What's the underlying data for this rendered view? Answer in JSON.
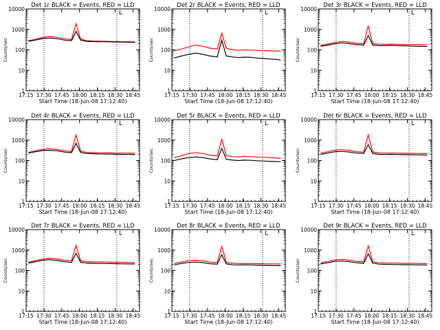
{
  "chart_data": [
    {
      "type": "line",
      "scale": "log",
      "title": "Det 1r BLACK = Events, RED = LLD",
      "xlabel": "Start Time (18-Jun-08 17:12:40)",
      "ylabel": "Counts/sec",
      "xtick_labels": [
        "17:15",
        "17:30",
        "17:45",
        "18:00",
        "18:15",
        "18:30",
        "18:45"
      ],
      "ytick_labels": [
        "1",
        "10",
        "100",
        "1000",
        "10000"
      ],
      "ylim": [
        1,
        10000
      ],
      "flag_label": "L",
      "series": [
        {
          "color": "#000000",
          "values": [
            260,
            300,
            360,
            380,
            350,
            300,
            280,
            800,
            300,
            260,
            255,
            250,
            250,
            245,
            240,
            240,
            235,
            230
          ]
        },
        {
          "color": "#ff0000",
          "values": [
            280,
            330,
            410,
            450,
            410,
            350,
            320,
            1900,
            340,
            280,
            270,
            265,
            262,
            258,
            254,
            250,
            248,
            245
          ]
        }
      ]
    },
    {
      "type": "line",
      "scale": "log",
      "title": "Det 2r BLACK = Events, RED = LLD",
      "xlabel": "Start Time (18-Jun-08 17:12:40)",
      "ylabel": "Counts/sec",
      "xtick_labels": [
        "17:15",
        "17:30",
        "17:45",
        "18:00",
        "18:15",
        "18:30",
        "18:45"
      ],
      "ytick_labels": [
        "1",
        "10",
        "100",
        "1000",
        "10000"
      ],
      "ylim": [
        1,
        10000
      ],
      "flag_label": "L",
      "series": [
        {
          "color": "#000000",
          "values": [
            40,
            50,
            60,
            70,
            60,
            50,
            45,
            300,
            50,
            45,
            42,
            44,
            43,
            40,
            38,
            36,
            34,
            32
          ]
        },
        {
          "color": "#ff0000",
          "values": [
            90,
            110,
            140,
            170,
            150,
            120,
            110,
            650,
            120,
            100,
            95,
            100,
            98,
            95,
            92,
            90,
            88,
            86
          ]
        }
      ]
    },
    {
      "type": "line",
      "scale": "log",
      "title": "Det 3r BLACK = Events, RED = LLD",
      "xlabel": "Start Time (18-Jun-08 17:12:40)",
      "ylabel": "Counts/sec",
      "xtick_labels": [
        "17:15",
        "17:30",
        "17:45",
        "18:00",
        "18:15",
        "18:30",
        "18:45"
      ],
      "ytick_labels": [
        "1",
        "10",
        "100",
        "1000",
        "10000"
      ],
      "ylim": [
        1,
        10000
      ],
      "flag_label": "L",
      "series": [
        {
          "color": "#000000",
          "values": [
            150,
            170,
            200,
            220,
            200,
            180,
            170,
            500,
            170,
            160,
            160,
            165,
            162,
            158,
            155,
            150,
            148,
            145
          ]
        },
        {
          "color": "#ff0000",
          "values": [
            165,
            190,
            230,
            260,
            240,
            210,
            200,
            1500,
            200,
            190,
            188,
            190,
            188,
            185,
            182,
            180,
            178,
            175
          ]
        }
      ]
    },
    {
      "type": "line",
      "scale": "log",
      "title": "Det 4r BLACK = Events, RED = LLD",
      "xlabel": "Start Time (18-Jun-08 17:12:40)",
      "ylabel": "Counts/sec",
      "xtick_labels": [
        "17:15",
        "17:30",
        "17:45",
        "18:00",
        "18:15",
        "18:30",
        "18:45"
      ],
      "ytick_labels": [
        "1",
        "10",
        "100",
        "1000",
        "10000"
      ],
      "ylim": [
        1,
        10000
      ],
      "flag_label": "L",
      "series": [
        {
          "color": "#000000",
          "values": [
            230,
            270,
            310,
            320,
            300,
            260,
            240,
            700,
            250,
            220,
            215,
            210,
            208,
            205,
            200,
            200,
            198,
            195
          ]
        },
        {
          "color": "#ff0000",
          "values": [
            250,
            300,
            350,
            380,
            350,
            300,
            280,
            1800,
            290,
            250,
            245,
            240,
            238,
            235,
            232,
            230,
            228,
            225
          ]
        }
      ]
    },
    {
      "type": "line",
      "scale": "log",
      "title": "Det 5r BLACK = Events, RED = LLD",
      "xlabel": "Start Time (18-Jun-08 17:12:40)",
      "ylabel": "Counts/sec",
      "xtick_labels": [
        "17:15",
        "17:30",
        "17:45",
        "18:00",
        "18:15",
        "18:30",
        "18:45"
      ],
      "ytick_labels": [
        "1",
        "10",
        "100",
        "1000",
        "10000"
      ],
      "ylim": [
        1,
        10000
      ],
      "flag_label": "L",
      "series": [
        {
          "color": "#000000",
          "values": [
            100,
            120,
            140,
            150,
            140,
            120,
            110,
            400,
            115,
            105,
            100,
            105,
            102,
            98,
            95,
            92,
            90,
            88
          ]
        },
        {
          "color": "#ff0000",
          "values": [
            140,
            170,
            220,
            240,
            220,
            180,
            165,
            1100,
            175,
            155,
            150,
            160,
            155,
            150,
            145,
            140,
            135,
            130
          ]
        }
      ]
    },
    {
      "type": "line",
      "scale": "log",
      "title": "Det 6r BLACK = Events, RED = LLD",
      "xlabel": "Start Time (18-Jun-08 17:12:40)",
      "ylabel": "Counts/sec",
      "xtick_labels": [
        "17:15",
        "17:30",
        "17:45",
        "18:00",
        "18:15",
        "18:30",
        "18:45"
      ],
      "ytick_labels": [
        "1",
        "10",
        "100",
        "1000",
        "10000"
      ],
      "ylim": [
        1,
        10000
      ],
      "flag_label": "L",
      "series": [
        {
          "color": "#000000",
          "values": [
            200,
            230,
            270,
            280,
            260,
            230,
            220,
            600,
            220,
            200,
            198,
            200,
            198,
            195,
            192,
            190,
            188,
            185
          ]
        },
        {
          "color": "#ff0000",
          "values": [
            230,
            270,
            320,
            340,
            310,
            270,
            255,
            1800,
            260,
            235,
            230,
            232,
            230,
            228,
            225,
            222,
            220,
            218
          ]
        }
      ]
    },
    {
      "type": "line",
      "scale": "log",
      "title": "Det 7r BLACK = Events, RED = LLD",
      "xlabel": "Start Time (18-Jun-08 17:12:40)",
      "ylabel": "Counts/sec",
      "xtick_labels": [
        "17:15",
        "17:30",
        "17:45",
        "18:00",
        "18:15",
        "18:30",
        "18:45"
      ],
      "ytick_labels": [
        "1",
        "10",
        "100",
        "1000",
        "10000"
      ],
      "ylim": [
        1,
        10000
      ],
      "flag_label": "L",
      "series": [
        {
          "color": "#000000",
          "values": [
            230,
            270,
            320,
            340,
            310,
            270,
            250,
            700,
            255,
            230,
            225,
            222,
            220,
            218,
            215,
            212,
            210,
            208
          ]
        },
        {
          "color": "#ff0000",
          "values": [
            255,
            300,
            370,
            400,
            370,
            320,
            300,
            1700,
            305,
            270,
            265,
            262,
            260,
            258,
            255,
            252,
            250,
            248
          ]
        }
      ]
    },
    {
      "type": "line",
      "scale": "log",
      "title": "Det 8r BLACK = Events, RED = LLD",
      "xlabel": "Start Time (18-Jun-08 17:12:40)",
      "ylabel": "Counts/sec",
      "xtick_labels": [
        "17:15",
        "17:30",
        "17:45",
        "18:00",
        "18:15",
        "18:30",
        "18:45"
      ],
      "ytick_labels": [
        "1",
        "10",
        "100",
        "1000",
        "10000"
      ],
      "ylim": [
        1,
        10000
      ],
      "flag_label": "L",
      "series": [
        {
          "color": "#000000",
          "values": [
            190,
            220,
            250,
            260,
            245,
            215,
            205,
            600,
            210,
            190,
            188,
            190,
            188,
            185,
            180,
            178,
            175,
            172
          ]
        },
        {
          "color": "#ff0000",
          "values": [
            220,
            260,
            300,
            320,
            300,
            260,
            245,
            1500,
            250,
            225,
            220,
            222,
            220,
            218,
            215,
            212,
            210,
            208
          ]
        }
      ]
    },
    {
      "type": "line",
      "scale": "log",
      "title": "Det 9r BLACK = Events, RED = LLD",
      "xlabel": "Start Time (18-Jun-08 17:12:40)",
      "ylabel": "Counts/sec",
      "xtick_labels": [
        "17:15",
        "17:30",
        "17:45",
        "18:00",
        "18:15",
        "18:30",
        "18:45"
      ],
      "ytick_labels": [
        "1",
        "10",
        "100",
        "1000",
        "10000"
      ],
      "ylim": [
        1,
        10000
      ],
      "flag_label": "L",
      "series": [
        {
          "color": "#000000",
          "values": [
            210,
            240,
            280,
            290,
            270,
            240,
            225,
            650,
            230,
            205,
            200,
            198,
            196,
            194,
            192,
            190,
            188,
            186
          ]
        },
        {
          "color": "#ff0000",
          "values": [
            240,
            280,
            330,
            350,
            320,
            280,
            265,
            1600,
            270,
            240,
            235,
            232,
            230,
            228,
            225,
            222,
            220,
            218
          ]
        }
      ]
    }
  ]
}
